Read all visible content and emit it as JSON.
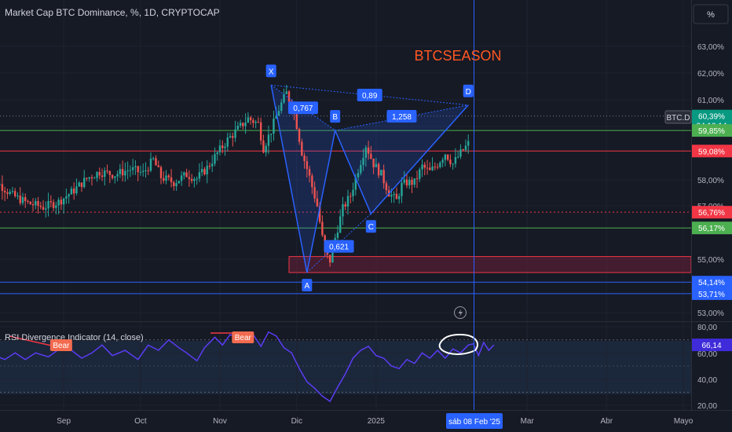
{
  "header": {
    "title": "Market Cap BTC Dominance, %, 1D, CRYPTOCAP"
  },
  "scale_button": {
    "label": "%"
  },
  "annotation_text": "BTCSEASON",
  "symbol_tag": "BTC.D",
  "countdown": "04:10:14",
  "crosshair_date": "sáb 08 Feb '25",
  "rsi_label": "RSI Divergence Indicator (14, close)",
  "rsi_last": "66,14",
  "colors": {
    "background": "#161a25",
    "up": "#26a69a",
    "down": "#ef5350",
    "pattern": "#2962ff",
    "rsi": "#5b3cf5",
    "annotation": "#ff5722",
    "green_level": "#4caf50",
    "red_level": "#f23645",
    "crosshair": "#2962ff"
  },
  "chart_data": [
    {
      "type": "candlestick",
      "title": "Market Cap BTC Dominance, %, 1D, CRYPTOCAP",
      "x_ticks": [
        "Sep",
        "Oct",
        "Nov",
        "Dic",
        "2025",
        "Mar",
        "Abr",
        "Mayo"
      ],
      "y_ticks": [
        "53,00%",
        "55,00%",
        "57,00%",
        "58,00%",
        "60,00%",
        "61,00%",
        "62,00%",
        "63,00%"
      ],
      "ylim": [
        52.6,
        64.4
      ],
      "last_value_label": "60,39%",
      "last_value": 60.39,
      "horizontal_levels": [
        {
          "value": 59.85,
          "label": "59,85%",
          "color": "#4caf50"
        },
        {
          "value": 59.08,
          "label": "59,08%",
          "color": "#f23645"
        },
        {
          "value": 56.76,
          "label": "56,76%",
          "color": "#f23645",
          "style": "dotted"
        },
        {
          "value": 56.17,
          "label": "56,17%",
          "color": "#4caf50"
        },
        {
          "value": 54.14,
          "label": "54,14%",
          "color": "#2962ff"
        },
        {
          "value": 53.71,
          "label": "53,71%",
          "color": "#2962ff"
        }
      ],
      "zone": {
        "top": 55.1,
        "bottom": 54.5
      },
      "harmonic_pattern": {
        "points": [
          {
            "label": "X",
            "date": "2024-11-21",
            "value": 61.55
          },
          {
            "label": "A",
            "date": "2024-12-05",
            "value": 54.5
          },
          {
            "label": "B",
            "date": "2024-12-16",
            "value": 59.85
          },
          {
            "label": "C",
            "date": "2024-12-30",
            "value": 56.7
          },
          {
            "label": "D",
            "date": "2025-02-06",
            "value": 60.8
          }
        ],
        "ratios": [
          {
            "label": "0,767",
            "between": "XA-B"
          },
          {
            "label": "0,89",
            "between": "X-D"
          },
          {
            "label": "1,258",
            "between": "B-D"
          },
          {
            "label": "0,621",
            "between": "A-C"
          }
        ]
      }
    },
    {
      "type": "line",
      "title": "RSI Divergence Indicator (14, close)",
      "y_ticks": [
        "20,00",
        "40,00",
        "60,00",
        "80,00"
      ],
      "ylim": [
        18.5,
        82
      ],
      "signals": [
        {
          "label": "Bear",
          "date": "2024-08-31"
        },
        {
          "label": "Bear",
          "date": "2024-11-10"
        }
      ],
      "last_value": 66.14
    }
  ]
}
